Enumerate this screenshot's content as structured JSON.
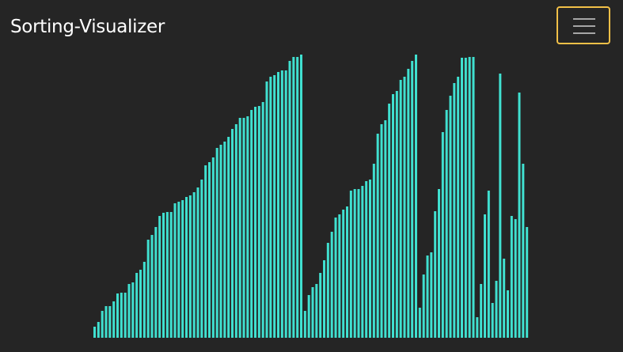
{
  "navbar": {
    "brand": "Sorting-Visualizer",
    "toggle_icon": "hamburger-icon",
    "toggle_border_color": "#f2c048"
  },
  "colors": {
    "background": "#252525",
    "bar": "#40e0d0"
  },
  "array": {
    "max_value": 360,
    "values": [
      14,
      20,
      34,
      40,
      40,
      46,
      56,
      57,
      57,
      68,
      70,
      82,
      86,
      96,
      124,
      130,
      140,
      154,
      158,
      159,
      159,
      170,
      172,
      174,
      178,
      180,
      184,
      190,
      200,
      218,
      222,
      228,
      240,
      244,
      248,
      254,
      264,
      270,
      278,
      278,
      280,
      288,
      292,
      293,
      298,
      324,
      330,
      332,
      336,
      338,
      338,
      350,
      355,
      355,
      358,
      34,
      54,
      64,
      68,
      82,
      98,
      120,
      134,
      152,
      156,
      162,
      166,
      186,
      188,
      188,
      192,
      198,
      200,
      220,
      258,
      270,
      275,
      296,
      308,
      312,
      326,
      330,
      340,
      350,
      358,
      38,
      80,
      104,
      108,
      160,
      188,
      260,
      288,
      306,
      322,
      330,
      354,
      354,
      355,
      355,
      26,
      68,
      156,
      186,
      44,
      72,
      334,
      100,
      60,
      154,
      150,
      310,
      220,
      140
    ]
  }
}
